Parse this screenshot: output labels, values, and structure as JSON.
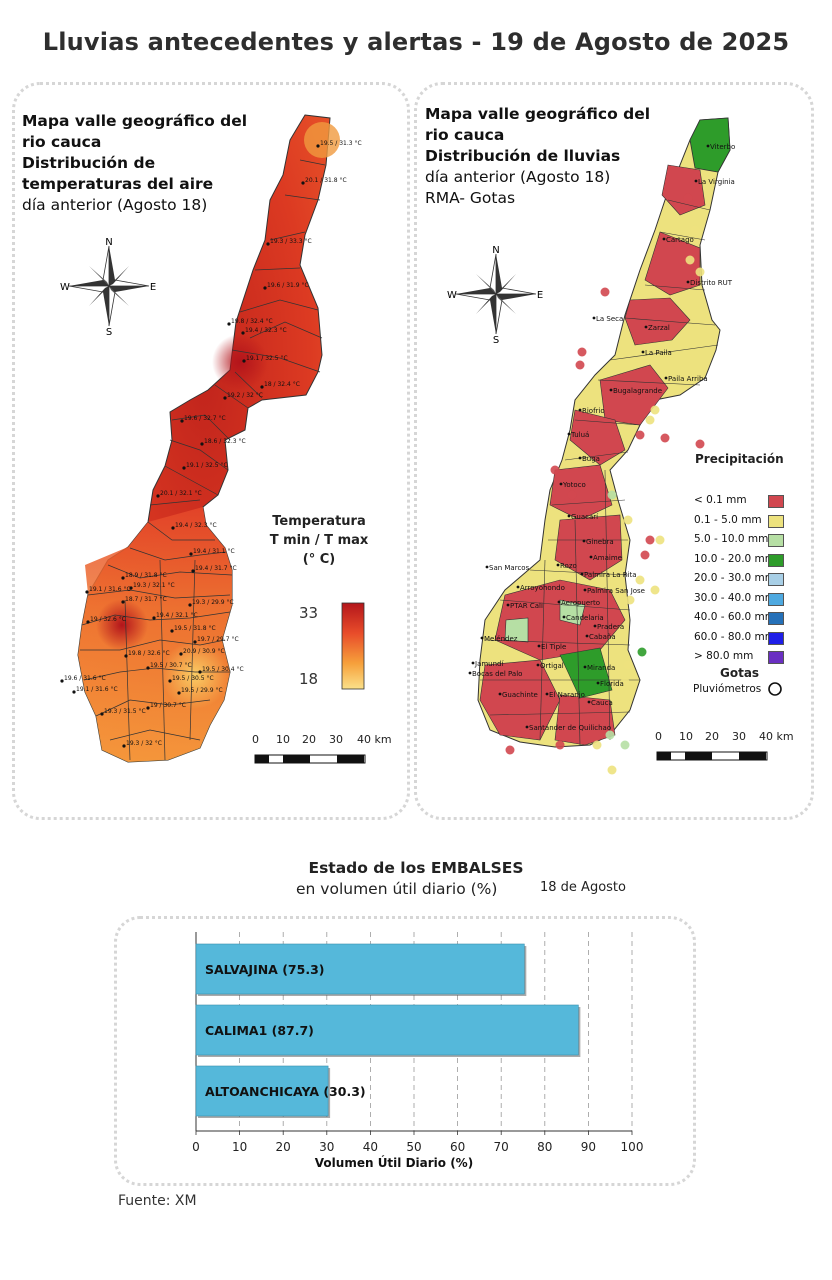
{
  "header": {
    "title": "Lluvias antecedentes y alertas - 19 de Agosto de 2025"
  },
  "temp_map": {
    "title_line1": "Mapa valle geográfico del",
    "title_line2": "rio cauca",
    "title_line3": "Distribución de",
    "title_line4": "temperaturas del aire",
    "title_line5": "día anterior (Agosto 18)",
    "compass": {
      "n": "N",
      "s": "S",
      "e": "E",
      "w": "W"
    },
    "legend": {
      "title1": "Temperatura",
      "title2": "T min / T max",
      "title3": "(° C)",
      "max": "33",
      "min": "18",
      "colors": [
        "#b4161b",
        "#e84c2a",
        "#f6a03b",
        "#fbe18a"
      ]
    },
    "scale": {
      "labels": [
        "0",
        "10",
        "20",
        "30",
        "40 km"
      ]
    },
    "stations": [
      "19.5 / 31.3 °C",
      "20.1 / 31.8 °C",
      "19.3 / 33.3 °C",
      "19.6 / 31.9 °C",
      "19.8 / 32.4 °C",
      "19.4 / 32.3 °C",
      "19.1 / 32.5 °C",
      "18 / 32.4 °C",
      "19.2 / 32 °C",
      "19.6 / 32.7 °C",
      "18.6 / 32.3 °C",
      "19.1 / 32.5 °C",
      "20.1 / 32.1 °C",
      "19.4 / 32.3 °C",
      "19.4 / 31.1 °C",
      "19.4 / 31.7 °C",
      "18.9 / 31.8 °C",
      "19.3 / 32.1 °C",
      "19.1 / 31.6 °C",
      "18.7 / 31.7 °C",
      "19.3 / 29.9 °C",
      "19.4 / 32.1 °C",
      "19.5 / 31.8 °C",
      "19.7 / 29.7 °C",
      "19 / 32.6 °C",
      "19.8 / 32.6 °C",
      "20.9 / 30.9 °C",
      "19.5 / 30.4 °C",
      "19.5 / 30.7 °C",
      "19.5 / 30.5 °C",
      "19.5 / 29.9 °C",
      "19.6 / 31.6 °C",
      "19.1 / 31.6 °C",
      "19 / 30.7 °C",
      "19.3 / 31.5 °C",
      "19.3 / 32 °C"
    ]
  },
  "rain_map": {
    "title_line1": "Mapa valle geográfico del",
    "title_line2": "rio cauca",
    "title_line3": "Distribución de lluvias",
    "title_line4": "día anterior (Agosto 18)",
    "title_line5": "RMA- Gotas",
    "compass": {
      "n": "N",
      "s": "S",
      "e": "E",
      "w": "W"
    },
    "legend": {
      "title": "Precipitación",
      "items": [
        {
          "label": "< 0.1 mm",
          "color": "#d1474f"
        },
        {
          "label": "0.1 - 5.0 mm",
          "color": "#ede27e"
        },
        {
          "label": "5.0 - 10.0 mm",
          "color": "#b6dfa4"
        },
        {
          "label": "10.0 - 20.0 mm",
          "color": "#2e9c2a"
        },
        {
          "label": "20.0 - 30.0 mm",
          "color": "#a8cfe6"
        },
        {
          "label": "30.0 - 40.0 mm",
          "color": "#4ea9e0"
        },
        {
          "label": "40.0 - 60.0 mm",
          "color": "#2570b8"
        },
        {
          "label": "60.0 - 80.0 mm",
          "color": "#1e1ee8"
        },
        {
          "label": "> 80.0 mm",
          "color": "#6a2fc2"
        }
      ],
      "gotas_title": "Gotas",
      "gotas_label": "Pluviómetros"
    },
    "scale": {
      "labels": [
        "0",
        "10",
        "20",
        "30",
        "40 km"
      ]
    },
    "places": [
      "Viterbo",
      "La Virginia",
      "Cartago",
      "Distrito RUT",
      "La Seca",
      "Zarzal",
      "La Paila",
      "Paila Arriba",
      "Bugalagrande",
      "Riofrio",
      "Tuluá",
      "Buga",
      "Yotoco",
      "Guacarí",
      "Ginebra",
      "Amaime",
      "San Marcos",
      "Rozo",
      "Palmira La Rita",
      "Arroyohondo",
      "Aeropuerto",
      "Palmira San Jose",
      "PTAR Cali",
      "Candelaria",
      "Pradera",
      "Meléndez",
      "El Tiple",
      "Cabaña",
      "Jamundí",
      "Bocas del Palo",
      "Ortigal",
      "Miranda",
      "Florida",
      "Guachinte",
      "El Naranjo",
      "Cauca",
      "Santander de Quilichao"
    ]
  },
  "reservoirs": {
    "title": "Estado de los EMBALSES",
    "subtitle": "en volumen útil diario (%)",
    "date": "18 de Agosto",
    "source": "Fuente: XM"
  },
  "chart_data": {
    "type": "bar",
    "orientation": "horizontal",
    "categories": [
      "SALVAJINA (75.3)",
      "CALIMA1 (87.7)",
      "ALTOANCHICAYA (30.3)"
    ],
    "values": [
      75.3,
      87.7,
      30.3
    ],
    "xlabel": "Volumen Útil Diario (%)",
    "ylabel": "",
    "xlim": [
      0,
      100
    ],
    "xticks": [
      0,
      10,
      20,
      30,
      40,
      50,
      60,
      70,
      80,
      90,
      100
    ],
    "bar_color": "#55b8da",
    "grid": "vertical dashed"
  }
}
